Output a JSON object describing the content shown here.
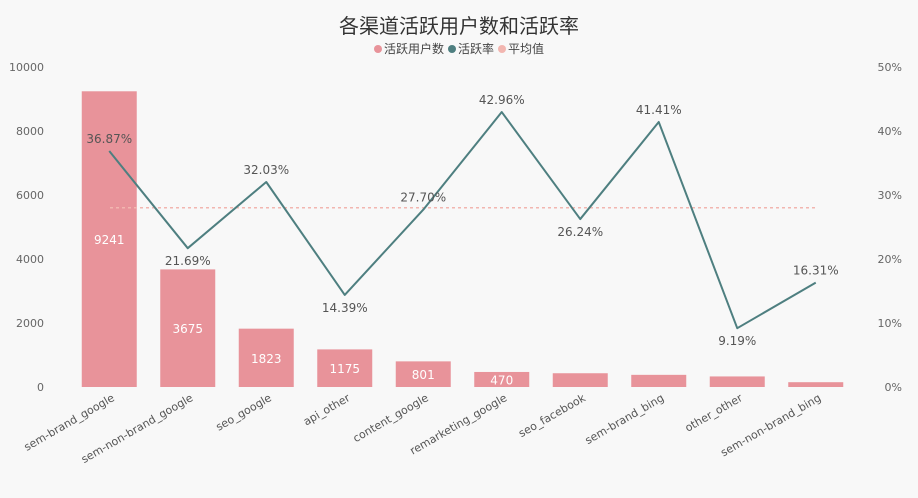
{
  "chart_data": {
    "type": "bar+line",
    "title": "各渠道活跃用户数和活跃率",
    "categories": [
      "sem-brand_google",
      "sem-non-brand_google",
      "seo_google",
      "api_other",
      "content_google",
      "remarketing_google",
      "seo_facebook",
      "sem-brand_bing",
      "other_other",
      "sem-non-brand_bing"
    ],
    "series": [
      {
        "name": "活跃用户数",
        "type": "bar",
        "axis": "left",
        "color": "#e8939a",
        "values": [
          9241,
          3675,
          1823,
          1175,
          801,
          470,
          430,
          380,
          330,
          150
        ],
        "labels": [
          "9241",
          "3675",
          "1823",
          "1175",
          "801",
          "470",
          "",
          "",
          "",
          ""
        ]
      },
      {
        "name": "活跃率",
        "type": "line",
        "axis": "right",
        "color": "#4e7f80",
        "values": [
          36.87,
          21.69,
          32.03,
          14.39,
          27.7,
          42.96,
          26.24,
          41.41,
          9.19,
          16.31
        ],
        "labels": [
          "36.87%",
          "21.69%",
          "32.03%",
          "14.39%",
          "27.70%",
          "42.96%",
          "26.24%",
          "41.41%",
          "9.19%",
          "16.31%"
        ]
      },
      {
        "name": "平均值",
        "type": "reference",
        "axis": "right",
        "color": "#f2b6b0",
        "value": 28
      }
    ],
    "left_axis": {
      "ylim": [
        0,
        10000
      ],
      "ticks": [
        0,
        2000,
        4000,
        6000,
        8000,
        10000
      ],
      "tick_labels": [
        "0",
        "2000",
        "4000",
        "6000",
        "8000",
        "10000"
      ]
    },
    "right_axis": {
      "ylim": [
        0,
        50
      ],
      "ticks": [
        0,
        10,
        20,
        30,
        40,
        50
      ],
      "tick_labels": [
        "0%",
        "10%",
        "20%",
        "30%",
        "40%",
        "50%"
      ]
    },
    "legend_position": "top-center",
    "grid": false,
    "background": "#f8f8f8"
  }
}
